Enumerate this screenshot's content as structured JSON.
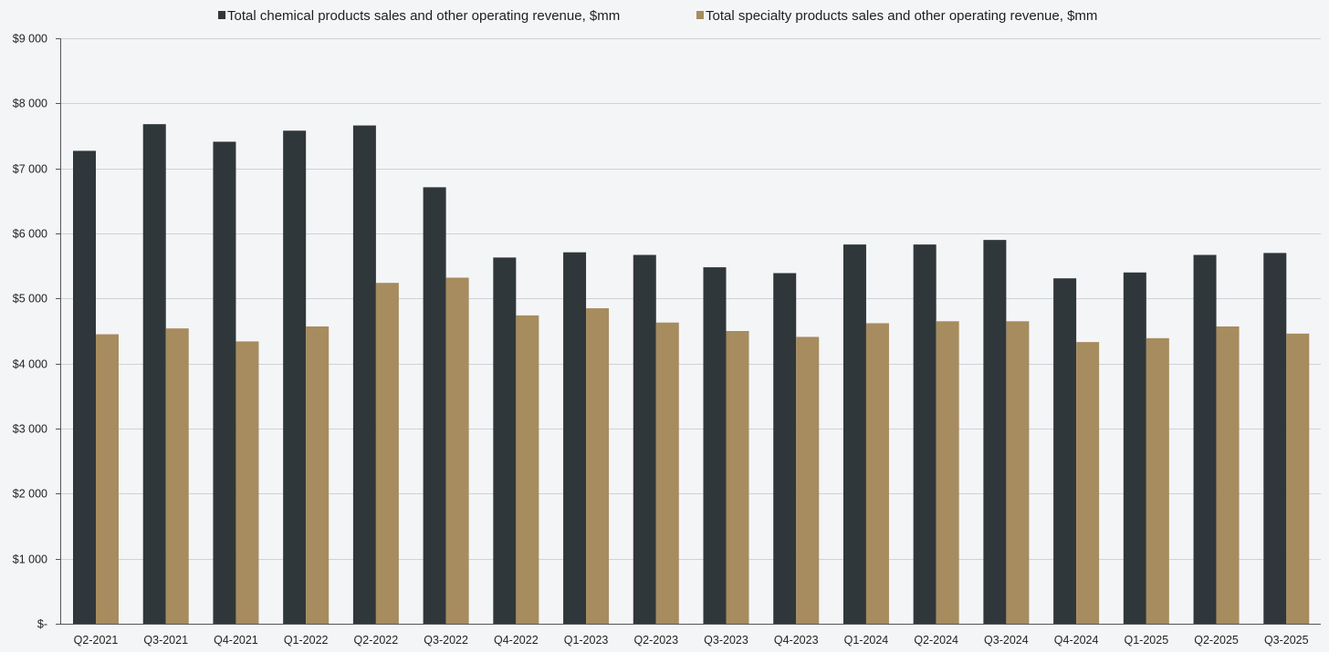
{
  "chart_data": {
    "type": "bar",
    "title": "",
    "xlabel": "",
    "ylabel": "",
    "ylim": [
      0,
      9000
    ],
    "y_ticks": [
      0,
      1000,
      2000,
      3000,
      4000,
      5000,
      6000,
      7000,
      8000,
      9000
    ],
    "y_tick_labels": [
      "$-",
      "$1 000",
      "$2 000",
      "$3 000",
      "$4 000",
      "$5 000",
      "$6 000",
      "$7 000",
      "$8 000",
      "$9 000"
    ],
    "grid": true,
    "legend_position": "top-center",
    "categories": [
      "Q2-2021",
      "Q3-2021",
      "Q4-2021",
      "Q1-2022",
      "Q2-2022",
      "Q3-2022",
      "Q4-2022",
      "Q1-2023",
      "Q2-2023",
      "Q3-2023",
      "Q4-2023",
      "Q1-2024",
      "Q2-2024",
      "Q3-2024",
      "Q4-2024",
      "Q1-2025",
      "Q2-2025",
      "Q3-2025"
    ],
    "series": [
      {
        "name": "Total chemical products sales and other operating revenue, $mm",
        "color": "#30373b",
        "values": [
          7270,
          7680,
          7410,
          7580,
          7660,
          6710,
          5630,
          5710,
          5670,
          5480,
          5390,
          5830,
          5830,
          5900,
          5310,
          5400,
          5670,
          5700
        ]
      },
      {
        "name": "Total specialty products sales and other operating revenue, $mm",
        "color": "#a68c5e",
        "values": [
          4450,
          4540,
          4340,
          4570,
          5240,
          5320,
          4740,
          4850,
          4630,
          4500,
          4410,
          4620,
          4650,
          4650,
          4330,
          4390,
          4570,
          4460
        ]
      }
    ]
  }
}
